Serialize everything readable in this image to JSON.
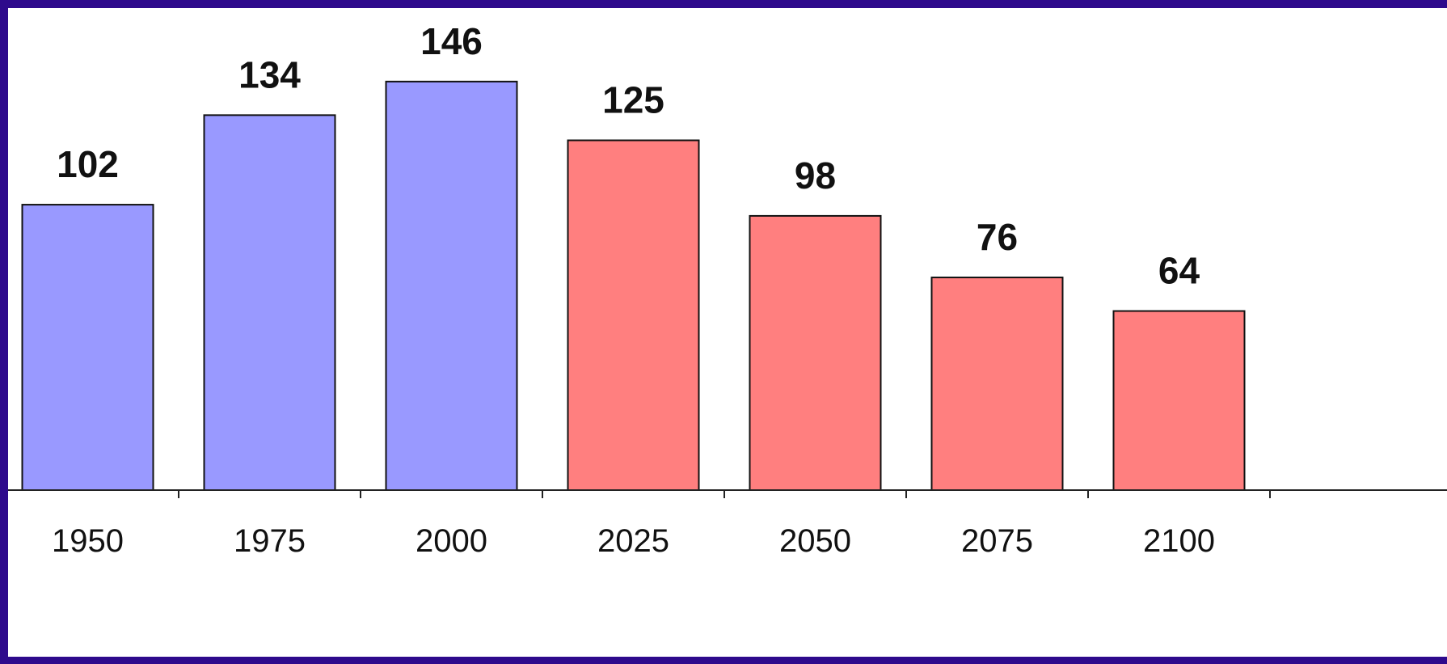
{
  "chart_data": {
    "type": "bar",
    "title": "",
    "xlabel": "",
    "ylabel": "",
    "categories": [
      "1950",
      "1975",
      "2000",
      "2025",
      "2050",
      "2075",
      "2100"
    ],
    "values": [
      102,
      134,
      146,
      125,
      98,
      76,
      64
    ],
    "data_labels": [
      "102",
      "134",
      "146",
      "125",
      "98",
      "76",
      "64"
    ],
    "ylim": [
      0,
      175
    ],
    "grid": false,
    "legend": "none",
    "bar_colors": [
      "#9999ff",
      "#9999ff",
      "#9999ff",
      "#ff7f7f",
      "#ff7f7f",
      "#ff7f7f",
      "#ff7f7f"
    ],
    "bar_outline_color": "#111111",
    "frame_color": "#2e0a8c",
    "background_color": "#ffffff"
  }
}
